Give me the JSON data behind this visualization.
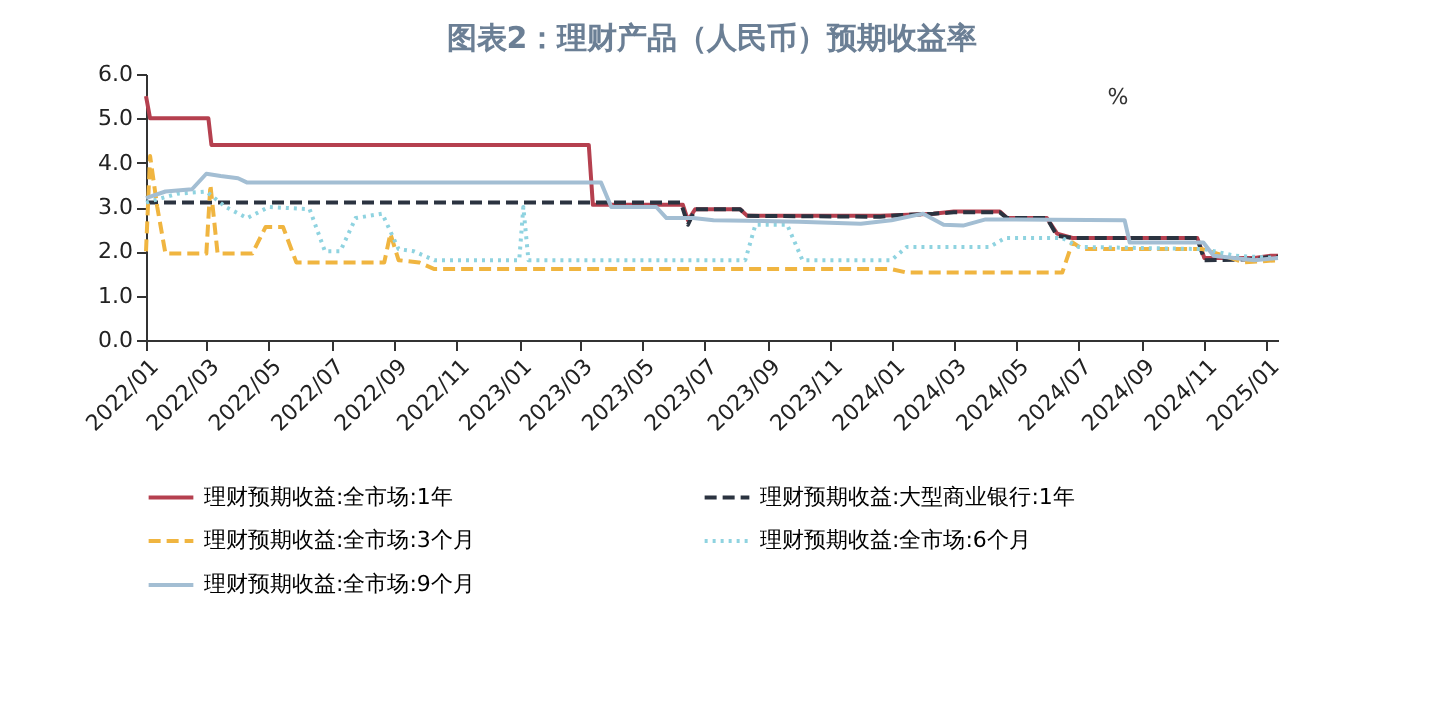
{
  "chart_data": {
    "type": "line",
    "title": "图表2：理财产品（人民币）预期收益率",
    "annotations": [
      "%"
    ],
    "xlim": [
      "2022-01-01",
      "2025-01-12"
    ],
    "xticks": [
      {
        "value": "2022-01-01",
        "label": "2022/01"
      },
      {
        "value": "2022-03-01",
        "label": "2022/03"
      },
      {
        "value": "2022-05-01",
        "label": "2022/05"
      },
      {
        "value": "2022-07-01",
        "label": "2022/07"
      },
      {
        "value": "2022-09-01",
        "label": "2022/09"
      },
      {
        "value": "2022-11-01",
        "label": "2022/11"
      },
      {
        "value": "2023-01-01",
        "label": "2023/01"
      },
      {
        "value": "2023-03-01",
        "label": "2023/03"
      },
      {
        "value": "2023-05-01",
        "label": "2023/05"
      },
      {
        "value": "2023-07-01",
        "label": "2023/07"
      },
      {
        "value": "2023-09-01",
        "label": "2023/09"
      },
      {
        "value": "2023-11-01",
        "label": "2023/11"
      },
      {
        "value": "2024-01-01",
        "label": "2024/01"
      },
      {
        "value": "2024-03-01",
        "label": "2024/03"
      },
      {
        "value": "2024-05-01",
        "label": "2024/05"
      },
      {
        "value": "2024-07-01",
        "label": "2024/07"
      },
      {
        "value": "2024-09-01",
        "label": "2024/09"
      },
      {
        "value": "2024-11-01",
        "label": "2024/11"
      },
      {
        "value": "2025-01-01",
        "label": "2025/01"
      }
    ],
    "ylim": [
      0,
      6
    ],
    "yticks": [
      {
        "value": 0,
        "label": "0.0"
      },
      {
        "value": 1,
        "label": "1.0"
      },
      {
        "value": 2,
        "label": "2.0"
      },
      {
        "value": 3,
        "label": "3.0"
      },
      {
        "value": 4,
        "label": "4.0"
      },
      {
        "value": 5,
        "label": "5.0"
      },
      {
        "value": 6,
        "label": "6.0"
      }
    ],
    "grid": false,
    "legend": "bottom",
    "marker": "none",
    "series": [
      {
        "name": "理财预期收益:全市场:1年",
        "color": "#b5404f",
        "line_style": "solid",
        "x": [
          "2022-01-01",
          "2022-01-05",
          "2022-03-03",
          "2022-03-06",
          "2023-03-10",
          "2023-03-14",
          "2023-06-10",
          "2023-06-15",
          "2023-06-22",
          "2023-08-05",
          "2023-08-12",
          "2023-12-20",
          "2024-01-10",
          "2024-02-10",
          "2024-03-01",
          "2024-04-15",
          "2024-04-22",
          "2024-05-31",
          "2024-06-10",
          "2024-06-25",
          "2024-10-25",
          "2024-11-01",
          "2024-12-20",
          "2025-01-05",
          "2025-01-12"
        ],
        "values": [
          5.5,
          5.0,
          5.0,
          4.4,
          4.4,
          3.05,
          3.05,
          2.7,
          2.95,
          2.95,
          2.8,
          2.8,
          2.82,
          2.85,
          2.9,
          2.9,
          2.75,
          2.75,
          2.4,
          2.3,
          2.3,
          1.85,
          1.85,
          1.9,
          1.9
        ]
      },
      {
        "name": "理财预期收益:大型商业银行:1年",
        "color": "#2b3340",
        "line_style": "dashed",
        "x": [
          "2022-01-01",
          "2023-06-08",
          "2023-06-15",
          "2023-06-22",
          "2023-08-05",
          "2023-08-12",
          "2023-12-20",
          "2024-01-10",
          "2024-02-10",
          "2024-03-01",
          "2024-04-15",
          "2024-04-22",
          "2024-05-31",
          "2024-06-10",
          "2024-06-25",
          "2024-10-25",
          "2024-11-01",
          "2024-12-20",
          "2025-01-05",
          "2025-01-12"
        ],
        "values": [
          3.1,
          3.1,
          2.6,
          2.95,
          2.95,
          2.8,
          2.78,
          2.82,
          2.85,
          2.88,
          2.88,
          2.75,
          2.75,
          2.35,
          2.3,
          2.3,
          1.8,
          1.82,
          1.88,
          1.88
        ]
      },
      {
        "name": "理财预期收益:全市场:3个月",
        "color": "#f0b540",
        "line_style": "dashed",
        "x": [
          "2022-01-01",
          "2022-01-05",
          "2022-01-12",
          "2022-01-20",
          "2022-03-01",
          "2022-03-05",
          "2022-03-12",
          "2022-04-15",
          "2022-04-28",
          "2022-05-15",
          "2022-05-28",
          "2022-08-22",
          "2022-08-28",
          "2022-09-05",
          "2022-09-25",
          "2022-10-10",
          "2023-12-31",
          "2024-01-15",
          "2024-06-15",
          "2024-06-25",
          "2024-07-05",
          "2024-10-30",
          "2024-11-20",
          "2024-12-10",
          "2025-01-12"
        ],
        "values": [
          2.0,
          4.15,
          3.0,
          1.95,
          1.95,
          3.5,
          1.95,
          1.95,
          2.55,
          2.55,
          1.75,
          1.75,
          2.4,
          1.8,
          1.75,
          1.6,
          1.6,
          1.52,
          1.52,
          2.2,
          2.05,
          2.05,
          1.9,
          1.75,
          1.8
        ]
      },
      {
        "name": "理财预期收益:全市场:6个月",
        "color": "#8fd3e0",
        "line_style": "dotted",
        "x": [
          "2022-01-01",
          "2022-02-01",
          "2022-03-01",
          "2022-03-20",
          "2022-04-10",
          "2022-05-01",
          "2022-06-10",
          "2022-06-25",
          "2022-07-10",
          "2022-07-25",
          "2022-08-20",
          "2022-09-05",
          "2022-09-20",
          "2022-10-10",
          "2023-01-01",
          "2023-01-05",
          "2023-01-10",
          "2023-08-10",
          "2023-08-20",
          "2023-09-20",
          "2023-10-05",
          "2023-12-31",
          "2024-01-15",
          "2024-04-05",
          "2024-04-20",
          "2024-06-15",
          "2024-07-01",
          "2024-11-01",
          "2024-12-01",
          "2025-01-12"
        ],
        "values": [
          3.1,
          3.3,
          3.35,
          3.0,
          2.75,
          3.0,
          2.95,
          2.0,
          2.0,
          2.75,
          2.85,
          2.05,
          2.0,
          1.8,
          1.8,
          3.0,
          1.8,
          1.8,
          2.6,
          2.6,
          1.8,
          1.8,
          2.1,
          2.1,
          2.3,
          2.3,
          2.1,
          2.05,
          1.9,
          1.85
        ]
      },
      {
        "name": "理财预期收益:全市场:9个月",
        "color": "#a3bed3",
        "line_style": "solid",
        "x": [
          "2022-01-01",
          "2022-01-20",
          "2022-02-15",
          "2022-03-01",
          "2022-03-15",
          "2022-04-01",
          "2022-04-10",
          "2023-03-22",
          "2023-04-01",
          "2023-05-15",
          "2023-05-25",
          "2023-06-20",
          "2023-07-10",
          "2023-10-01",
          "2023-12-01",
          "2023-12-31",
          "2024-01-31",
          "2024-02-20",
          "2024-03-10",
          "2024-04-01",
          "2024-08-15",
          "2024-08-20",
          "2024-10-31",
          "2024-11-10",
          "2024-12-20",
          "2025-01-12"
        ],
        "values": [
          3.2,
          3.35,
          3.4,
          3.75,
          3.7,
          3.65,
          3.55,
          3.55,
          3.0,
          3.0,
          2.75,
          2.75,
          2.7,
          2.67,
          2.62,
          2.7,
          2.85,
          2.6,
          2.58,
          2.72,
          2.7,
          2.2,
          2.2,
          1.9,
          1.8,
          1.85
        ]
      }
    ]
  }
}
